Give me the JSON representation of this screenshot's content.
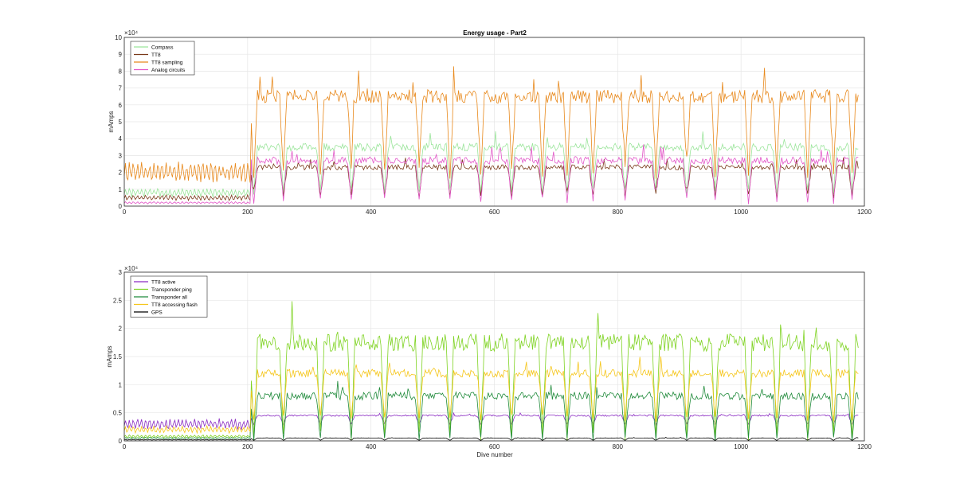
{
  "chart_data": [
    {
      "type": "line",
      "title": "Energy usage - Part2",
      "xlabel": "",
      "ylabel": "mAmps",
      "xlim": [
        0,
        1200
      ],
      "ylim": [
        0,
        100000
      ],
      "y_exponent_label": "×10⁴",
      "xticks": [
        0,
        200,
        400,
        600,
        800,
        1000,
        1200
      ],
      "yticks": [
        0,
        10000,
        20000,
        30000,
        40000,
        50000,
        60000,
        70000,
        80000,
        90000,
        100000
      ],
      "ytick_labels": [
        "0",
        "1",
        "2",
        "3",
        "4",
        "5",
        "6",
        "7",
        "8",
        "9",
        "10"
      ],
      "grid": true,
      "legend_position": "top-left",
      "series": [
        {
          "name": "Compass",
          "color": "#9be59b",
          "pre_level": 8000,
          "high": 35000,
          "low": 9000
        },
        {
          "name": "TT8",
          "color": "#7a3a1a",
          "pre_level": 5000,
          "high": 23000,
          "low": 6000
        },
        {
          "name": "TT8 sampling",
          "color": "#e8891c",
          "pre_level": 20000,
          "high": 65000,
          "low": 20000
        },
        {
          "name": "Analog circuits",
          "color": "#e255c8",
          "pre_level": 2000,
          "high": 27000,
          "low": 3000
        }
      ]
    },
    {
      "type": "line",
      "title": "",
      "xlabel": "Dive number",
      "ylabel": "mAmps",
      "xlim": [
        0,
        1200
      ],
      "ylim": [
        0,
        30000
      ],
      "y_exponent_label": "×10⁴",
      "xticks": [
        0,
        200,
        400,
        600,
        800,
        1000,
        1200
      ],
      "yticks": [
        0,
        5000,
        10000,
        15000,
        20000,
        25000,
        30000
      ],
      "ytick_labels": [
        "0",
        "0.5",
        "1",
        "1.5",
        "2",
        "2.5",
        "3"
      ],
      "grid": true,
      "legend_position": "top-left",
      "series": [
        {
          "name": "TT8 active",
          "color": "#8a2bc2",
          "pre_level": 3000,
          "high": 4500,
          "low": 3000
        },
        {
          "name": "Transponder ping",
          "color": "#7ed321",
          "pre_level": 800,
          "high": 17500,
          "low": 300
        },
        {
          "name": "Transponder all",
          "color": "#1f8a3a",
          "pre_level": 500,
          "high": 8000,
          "low": 300
        },
        {
          "name": "TT8 accessing flash",
          "color": "#f5c518",
          "pre_level": 2000,
          "high": 12000,
          "low": 4000
        },
        {
          "name": "GPS",
          "color": "#000000",
          "pre_level": 200,
          "high": 500,
          "low": 100
        }
      ]
    }
  ]
}
